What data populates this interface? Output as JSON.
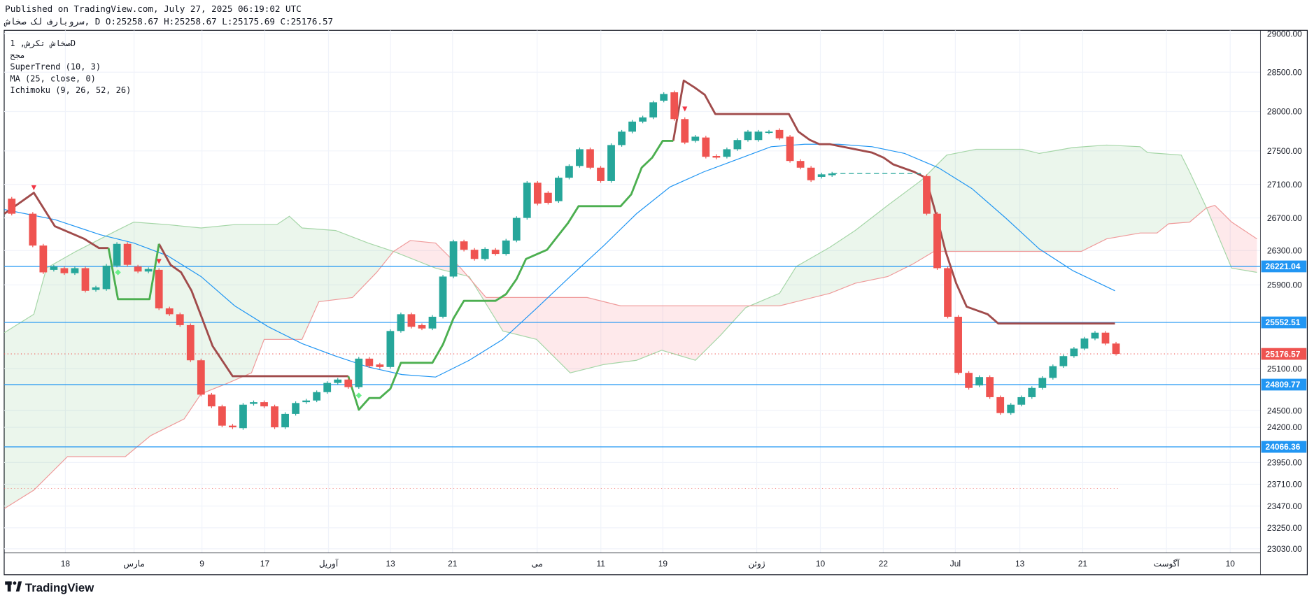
{
  "header": {
    "published": "Published on TradingView.com, July 27, 2025 06:19:02 UTC",
    "symbol_line": "سروبارف لک صخاش, D O:25258.67 H:25258.67 L:25175.69 C:25176.57"
  },
  "legend": {
    "title": "صخاش تکرش, 1D",
    "subtitle": "مجح",
    "indicators": [
      "SuperTrend (10, 3)",
      "MA (25, close, 0)",
      "Ichimoku (9, 26, 52, 26)"
    ]
  },
  "branding": {
    "logo_text": "TradingView"
  },
  "colors": {
    "up": "#26a69a",
    "down": "#ef5350",
    "ma": "#2196f3",
    "st_up": "#4caf50",
    "st_down": "#a04b4b",
    "cloud_up": "#4caf50",
    "cloud_down": "#f23645",
    "span_a": "#a5d6a7",
    "span_b": "#ef9a9a",
    "hline": "#2196f3"
  },
  "chart_data": {
    "type": "candlestick",
    "price_ticks": [
      "29000.00",
      "28500.00",
      "28000.00",
      "27500.00",
      "27100.00",
      "26700.00",
      "26300.00",
      "25900.00",
      "25100.00",
      "24500.00",
      "24200.00",
      "23950.00",
      "23710.00",
      "23470.00",
      "23250.00",
      "23030.00"
    ],
    "time_ticks": [
      "18",
      "مارس",
      "9",
      "17",
      "آوریل",
      "13",
      "21",
      "می",
      "11",
      "19",
      "ژوئن",
      "10",
      "22",
      "Jul",
      "13",
      "21",
      "آگوست",
      "10"
    ],
    "price_tags": [
      {
        "label": "26221.04",
        "value": 26221.04,
        "color": "#2196f3"
      },
      {
        "label": "25552.51",
        "value": 25552.51,
        "color": "#2196f3"
      },
      {
        "label": "25176.57",
        "value": 25176.57,
        "color": "#ef5350"
      },
      {
        "label": "24809.77",
        "value": 24809.77,
        "color": "#2196f3"
      },
      {
        "label": "24066.36",
        "value": 24066.36,
        "color": "#2196f3"
      }
    ],
    "horizontal_lines": [
      26221.04,
      25552.51,
      24809.77,
      24066.36
    ],
    "last_price": 25176.57,
    "candles_oc": [
      [
        0,
        27030,
        26850
      ],
      [
        2,
        26850,
        26470
      ],
      [
        3,
        26470,
        26150
      ],
      [
        4,
        26180,
        26220
      ],
      [
        5,
        26200,
        26140
      ],
      [
        6,
        26140,
        26200
      ],
      [
        7,
        26200,
        25930
      ],
      [
        8,
        25940,
        25970
      ],
      [
        9,
        25950,
        26230
      ],
      [
        10,
        26230,
        26490
      ],
      [
        11,
        26490,
        26240
      ],
      [
        12,
        26220,
        26160
      ],
      [
        13,
        26160,
        26190
      ],
      [
        14,
        26180,
        25720
      ],
      [
        15,
        25720,
        25650
      ],
      [
        16,
        25650,
        25520
      ],
      [
        17,
        25520,
        25100
      ],
      [
        18,
        25100,
        24690
      ],
      [
        19,
        24690,
        24550
      ],
      [
        20,
        24550,
        24320
      ],
      [
        21,
        24320,
        24300
      ],
      [
        22,
        24290,
        24570
      ],
      [
        23,
        24580,
        24600
      ],
      [
        24,
        24600,
        24550
      ],
      [
        25,
        24550,
        24300
      ],
      [
        26,
        24300,
        24460
      ],
      [
        27,
        24460,
        24590
      ],
      [
        28,
        24600,
        24620
      ],
      [
        29,
        24620,
        24720
      ],
      [
        30,
        24720,
        24830
      ],
      [
        31,
        24830,
        24870
      ],
      [
        32,
        24870,
        24780
      ],
      [
        33,
        24780,
        25120
      ],
      [
        34,
        25120,
        25030
      ],
      [
        35,
        25050,
        25020
      ],
      [
        36,
        25020,
        25450
      ],
      [
        37,
        25450,
        25650
      ],
      [
        38,
        25650,
        25500
      ],
      [
        39,
        25520,
        25480
      ],
      [
        40,
        25480,
        25620
      ],
      [
        41,
        25620,
        26100
      ],
      [
        42,
        26100,
        26520
      ],
      [
        43,
        26520,
        26420
      ],
      [
        44,
        26420,
        26310
      ],
      [
        45,
        26310,
        26430
      ],
      [
        46,
        26420,
        26370
      ],
      [
        47,
        26370,
        26530
      ],
      [
        48,
        26530,
        26800
      ],
      [
        49,
        26800,
        27220
      ],
      [
        50,
        27220,
        26970
      ],
      [
        51,
        27100,
        26980
      ],
      [
        52,
        27000,
        27280
      ],
      [
        53,
        27280,
        27420
      ],
      [
        54,
        27420,
        27620
      ],
      [
        55,
        27620,
        27400
      ],
      [
        56,
        27400,
        27240
      ],
      [
        57,
        27240,
        27670
      ],
      [
        58,
        27670,
        27830
      ],
      [
        59,
        27830,
        27950
      ],
      [
        60,
        27950,
        28000
      ],
      [
        61,
        28000,
        28180
      ],
      [
        62,
        28200,
        28280
      ],
      [
        63,
        28300,
        27980
      ],
      [
        64,
        27980,
        27700
      ],
      [
        65,
        27720,
        27770
      ],
      [
        66,
        27760,
        27530
      ],
      [
        67,
        27540,
        27520
      ],
      [
        68,
        27530,
        27620
      ],
      [
        69,
        27620,
        27730
      ],
      [
        70,
        27730,
        27830
      ],
      [
        71,
        27730,
        27830
      ],
      [
        72,
        27820,
        27830
      ],
      [
        73,
        27850,
        27750
      ],
      [
        74,
        27770,
        27480
      ],
      [
        75,
        27480,
        27400
      ],
      [
        76,
        27400,
        27250
      ],
      [
        77,
        27290,
        27320
      ],
      [
        78,
        27310,
        27330
      ],
      [
        87,
        27300,
        26850
      ],
      [
        88,
        26850,
        26200
      ],
      [
        89,
        26200,
        25620
      ],
      [
        90,
        25620,
        24950
      ],
      [
        91,
        24950,
        24770
      ],
      [
        92,
        24800,
        24900
      ],
      [
        93,
        24900,
        24660
      ],
      [
        94,
        24660,
        24470
      ],
      [
        95,
        24470,
        24570
      ],
      [
        96,
        24570,
        24660
      ],
      [
        97,
        24660,
        24770
      ],
      [
        98,
        24770,
        24890
      ],
      [
        99,
        24890,
        25030
      ],
      [
        100,
        25030,
        25150
      ],
      [
        101,
        25150,
        25240
      ],
      [
        102,
        25240,
        25360
      ],
      [
        103,
        25360,
        25430
      ],
      [
        104,
        25430,
        25300
      ],
      [
        105,
        25300,
        25176.57
      ]
    ],
    "gap_dashed": {
      "from_bar": 78,
      "to_bar": 86.5,
      "value": 27330
    },
    "supertrend_down": [
      [
        [
          -0.7,
          26850
        ],
        [
          2.1,
          27100
        ],
        [
          4.1,
          26700
        ],
        [
          6.9,
          26550
        ],
        [
          8.3,
          26440
        ],
        [
          9.2,
          26440
        ]
      ],
      [
        [
          14.0,
          26490
        ],
        [
          15.1,
          26240
        ],
        [
          16.1,
          26150
        ],
        [
          17.1,
          25930
        ],
        [
          18.1,
          25600
        ],
        [
          19.1,
          25270
        ],
        [
          21.0,
          24910
        ],
        [
          32.0,
          24910
        ]
      ],
      [
        [
          62.9,
          27720
        ],
        [
          63.9,
          28440
        ],
        [
          64.9,
          28360
        ],
        [
          65.9,
          28270
        ],
        [
          66.9,
          28040
        ],
        [
          73.9,
          28040
        ],
        [
          74.8,
          27830
        ],
        [
          75.9,
          27730
        ],
        [
          76.8,
          27680
        ],
        [
          77.8,
          27680
        ],
        [
          81.8,
          27580
        ],
        [
          82.9,
          27520
        ],
        [
          83.8,
          27440
        ],
        [
          85.8,
          27350
        ],
        [
          86.9,
          27280
        ],
        [
          87.9,
          26840
        ],
        [
          88.8,
          26400
        ],
        [
          89.8,
          26020
        ],
        [
          90.8,
          25740
        ],
        [
          92.8,
          25650
        ],
        [
          93.8,
          25540
        ],
        [
          104.9,
          25540
        ]
      ]
    ],
    "supertrend_up": [
      [
        [
          9.2,
          26440
        ],
        [
          10.1,
          25830
        ],
        [
          13.1,
          25830
        ],
        [
          14.0,
          26490
        ]
      ],
      [
        [
          32.0,
          24910
        ],
        [
          33.0,
          24510
        ],
        [
          34.0,
          24650
        ],
        [
          35.0,
          24650
        ],
        [
          36.0,
          24760
        ],
        [
          37.0,
          25070
        ],
        [
          40.0,
          25070
        ],
        [
          41.0,
          25290
        ],
        [
          42.0,
          25600
        ],
        [
          43.0,
          25810
        ],
        [
          46.0,
          25810
        ],
        [
          47.0,
          25890
        ],
        [
          48.0,
          26070
        ],
        [
          48.9,
          26310
        ],
        [
          50.9,
          26420
        ],
        [
          51.9,
          26580
        ],
        [
          52.9,
          26740
        ],
        [
          53.9,
          26940
        ],
        [
          57.9,
          26940
        ],
        [
          58.9,
          27080
        ],
        [
          59.9,
          27400
        ],
        [
          60.9,
          27520
        ],
        [
          61.9,
          27720
        ],
        [
          62.9,
          27720
        ]
      ]
    ],
    "supertrend_signals": [
      {
        "bar": 2.1,
        "value": 27160,
        "type": "sell"
      },
      {
        "bar": 14.0,
        "value": 26280,
        "type": "sell"
      },
      {
        "bar": 64.0,
        "value": 28100,
        "type": "sell"
      },
      {
        "bar": 10.1,
        "value": 26150,
        "type": "buy"
      },
      {
        "bar": 33.0,
        "value": 24680,
        "type": "buy"
      }
    ],
    "ma": [
      [
        -0.7,
        26900
      ],
      [
        4.1,
        26780
      ],
      [
        8.4,
        26600
      ],
      [
        11.6,
        26500
      ],
      [
        14.8,
        26350
      ],
      [
        18.0,
        26100
      ],
      [
        21.2,
        25750
      ],
      [
        24.4,
        25500
      ],
      [
        27.6,
        25300
      ],
      [
        30.8,
        25150
      ],
      [
        33.9,
        25020
      ],
      [
        37.1,
        24930
      ],
      [
        40.3,
        24900
      ],
      [
        43.5,
        25100
      ],
      [
        46.7,
        25350
      ],
      [
        49.9,
        25720
      ],
      [
        53.1,
        26100
      ],
      [
        56.3,
        26470
      ],
      [
        59.4,
        26850
      ],
      [
        62.6,
        27170
      ],
      [
        65.8,
        27350
      ],
      [
        69.0,
        27500
      ],
      [
        72.2,
        27650
      ],
      [
        75.4,
        27680
      ],
      [
        78.6,
        27680
      ],
      [
        81.8,
        27650
      ],
      [
        84.9,
        27570
      ],
      [
        88.1,
        27400
      ],
      [
        91.3,
        27150
      ],
      [
        94.5,
        26800
      ],
      [
        97.7,
        26430
      ],
      [
        100.9,
        26170
      ],
      [
        104.9,
        25930
      ]
    ],
    "span_a": [
      [
        -0.7,
        25430
      ],
      [
        2.1,
        25650
      ],
      [
        3.3,
        26200
      ],
      [
        6.1,
        26400
      ],
      [
        10.0,
        26650
      ],
      [
        11.6,
        26750
      ],
      [
        14.8,
        26720
      ],
      [
        18.0,
        26680
      ],
      [
        21.2,
        26720
      ],
      [
        25.2,
        26720
      ],
      [
        26.4,
        26820
      ],
      [
        27.6,
        26680
      ],
      [
        30.8,
        26650
      ],
      [
        33.9,
        26500
      ],
      [
        36.3,
        26400
      ],
      [
        40.3,
        26200
      ],
      [
        43.5,
        26100
      ],
      [
        46.7,
        25450
      ],
      [
        49.9,
        25350
      ],
      [
        53.1,
        24950
      ],
      [
        56.3,
        25050
      ],
      [
        59.4,
        25100
      ],
      [
        61.8,
        25220
      ],
      [
        65.0,
        25100
      ],
      [
        67.4,
        25400
      ],
      [
        69.8,
        25730
      ],
      [
        73.0,
        25900
      ],
      [
        74.6,
        26220
      ],
      [
        77.8,
        26450
      ],
      [
        80.2,
        26650
      ],
      [
        83.3,
        26950
      ],
      [
        86.5,
        27250
      ],
      [
        88.9,
        27550
      ],
      [
        91.7,
        27620
      ],
      [
        96.1,
        27620
      ],
      [
        97.7,
        27570
      ],
      [
        100.9,
        27640
      ],
      [
        104.1,
        27670
      ],
      [
        107.3,
        27650
      ],
      [
        108.0,
        27580
      ],
      [
        111.2,
        27550
      ],
      [
        112.0,
        27350
      ],
      [
        113.6,
        26920
      ],
      [
        116.0,
        26200
      ],
      [
        118.4,
        26150
      ]
    ],
    "span_b": [
      [
        -0.7,
        23330
      ],
      [
        2.1,
        23550
      ],
      [
        5.3,
        23950
      ],
      [
        10.8,
        23950
      ],
      [
        13.2,
        24200
      ],
      [
        16.4,
        24400
      ],
      [
        18.0,
        24700
      ],
      [
        20.4,
        24820
      ],
      [
        22.8,
        24950
      ],
      [
        24.0,
        25350
      ],
      [
        27.6,
        25350
      ],
      [
        29.2,
        25800
      ],
      [
        32.4,
        25850
      ],
      [
        34.7,
        26150
      ],
      [
        36.3,
        26400
      ],
      [
        37.9,
        26530
      ],
      [
        40.3,
        26500
      ],
      [
        42.7,
        26200
      ],
      [
        45.1,
        25850
      ],
      [
        54.7,
        25850
      ],
      [
        57.9,
        25750
      ],
      [
        69.8,
        25750
      ],
      [
        73.0,
        25750
      ],
      [
        77.8,
        25900
      ],
      [
        80.2,
        26020
      ],
      [
        83.3,
        26100
      ],
      [
        85.7,
        26250
      ],
      [
        87.7,
        26400
      ],
      [
        101.7,
        26400
      ],
      [
        104.1,
        26550
      ],
      [
        107.3,
        26620
      ],
      [
        108.9,
        26620
      ],
      [
        110.0,
        26730
      ],
      [
        112.0,
        26750
      ],
      [
        113.6,
        26920
      ],
      [
        114.4,
        26950
      ],
      [
        116.0,
        26750
      ],
      [
        118.4,
        26550
      ]
    ],
    "lagging_dotted_value": 23570
  }
}
